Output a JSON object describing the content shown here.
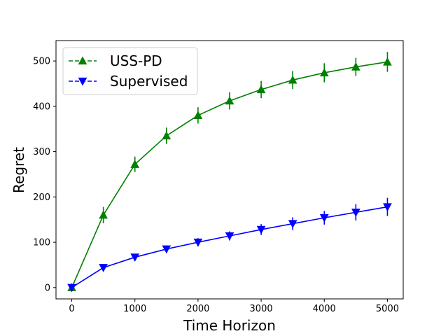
{
  "chart_data": {
    "type": "line",
    "xlabel": "Time Horizon",
    "ylabel": "Regret",
    "xlim": [
      -250,
      5250
    ],
    "ylim": [
      -25,
      545
    ],
    "xticks": [
      0,
      1000,
      2000,
      3000,
      4000,
      5000
    ],
    "yticks": [
      0,
      100,
      200,
      300,
      400,
      500
    ],
    "grid": false,
    "legend_position": "top-left",
    "x": [
      0,
      500,
      1000,
      1500,
      2000,
      2500,
      3000,
      3500,
      4000,
      4500,
      5000
    ],
    "series": [
      {
        "name": "USS-PD",
        "color": "#008000",
        "marker": "triangle-up",
        "values": [
          0,
          160,
          272,
          335,
          380,
          412,
          437,
          458,
          474,
          487,
          498
        ],
        "error": [
          0,
          18,
          17,
          18,
          18,
          19,
          19,
          20,
          21,
          20,
          22
        ]
      },
      {
        "name": "Supervised",
        "color": "#0000ff",
        "marker": "triangle-down",
        "values": [
          0,
          44,
          67,
          85,
          100,
          114,
          128,
          141,
          154,
          166,
          178
        ],
        "error": [
          0,
          8,
          7,
          8,
          9,
          10,
          12,
          14,
          15,
          18,
          20
        ]
      }
    ]
  }
}
